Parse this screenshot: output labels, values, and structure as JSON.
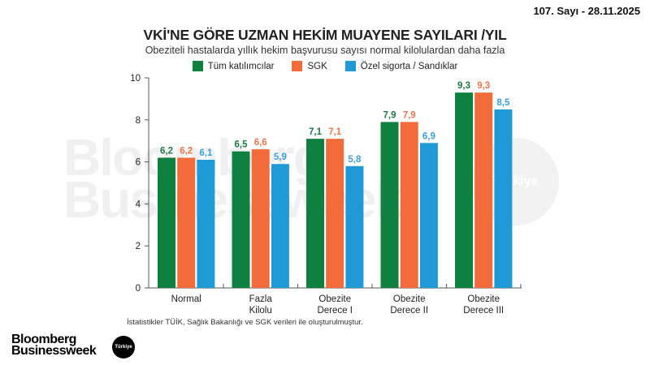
{
  "header": {
    "issue": "107. Sayı - 28.11.2025"
  },
  "chart_data": {
    "type": "bar",
    "title": "VKİ'NE GÖRE UZMAN HEKİM MUAYENE SAYILARI /YIL",
    "subtitle": "Obeziteli hastalarda yıllık hekim başvurusu sayısı normal kilolulardan daha fazla",
    "xlabel": "",
    "ylabel": "",
    "ylim": [
      0,
      10
    ],
    "yticks": [
      0,
      2,
      4,
      6,
      8,
      10
    ],
    "grid": false,
    "legend_position": "top",
    "categories": [
      "Normal",
      "Fazla Kilolu",
      "Obezite Derece I",
      "Obezite Derece II",
      "Obezite Derece III"
    ],
    "category_lines": [
      [
        "Normal"
      ],
      [
        "Fazla",
        "Kilolu"
      ],
      [
        "Obezite",
        "Derece I"
      ],
      [
        "Obezite",
        "Derece II"
      ],
      [
        "Obezite",
        "Derece III"
      ]
    ],
    "series": [
      {
        "name": "Tüm katılımcılar",
        "color": "#0e8040",
        "values": [
          6.2,
          6.5,
          7.1,
          7.9,
          9.3
        ],
        "labels": [
          "6,2",
          "6,5",
          "7,1",
          "7,9",
          "9,3"
        ]
      },
      {
        "name": "SGK",
        "color": "#f26b3a",
        "values": [
          6.2,
          6.6,
          7.1,
          7.9,
          9.3
        ],
        "labels": [
          "6,2",
          "6,6",
          "7,1",
          "7,9",
          "9,3"
        ]
      },
      {
        "name": "Özel sigorta / Sandıklar",
        "color": "#1f9ad6",
        "values": [
          6.1,
          5.9,
          5.8,
          6.9,
          8.5
        ],
        "labels": [
          "6,1",
          "5,9",
          "5,8",
          "6,9",
          "8,5"
        ]
      }
    ],
    "source": "İstatistikler TÜİK, Sağlık Bakanlığı ve SGK verileri ile oluşturulmuştur."
  },
  "watermark": {
    "text": "Bloomberg\nBusinessweek",
    "badge": "Türkiye"
  },
  "logo": {
    "line1": "Bloomberg",
    "line2": "Businessweek",
    "badge": "Türkiye"
  }
}
